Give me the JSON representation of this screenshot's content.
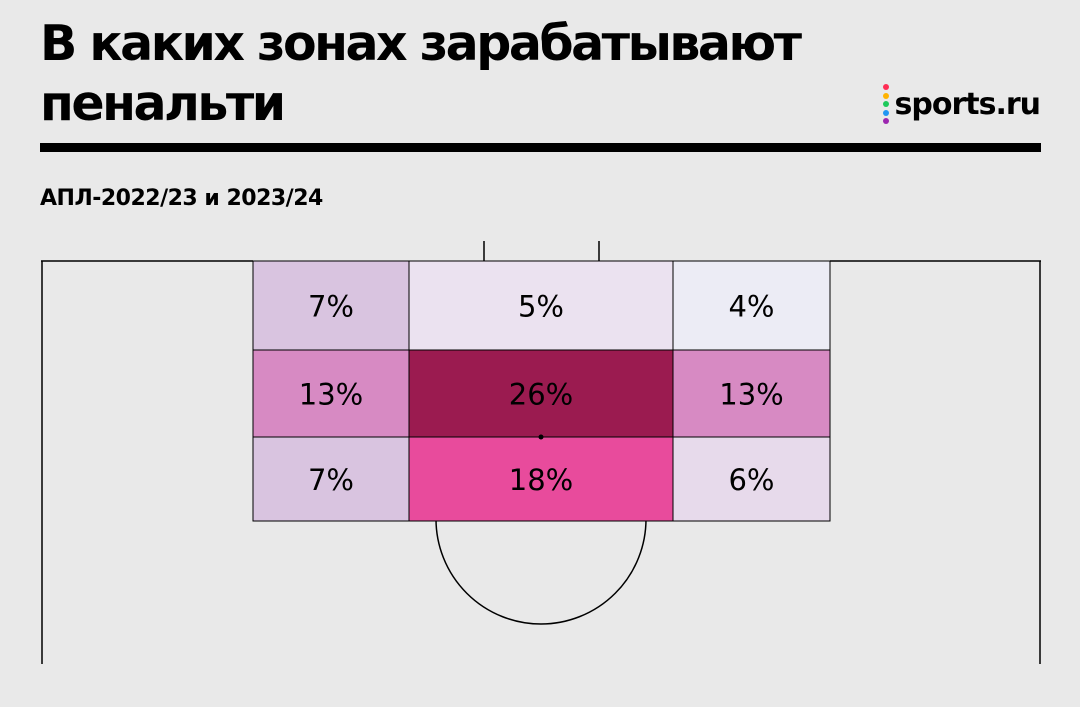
{
  "title": "В каких зонах зарабатывают пенальти",
  "subtitle": "АПЛ-2022/23 и 2023/24",
  "logo": {
    "text": "sports.ru",
    "dot_colors": [
      "#ff2d55",
      "#ffb300",
      "#1ec95b",
      "#2196f3",
      "#9c27b0"
    ]
  },
  "colors": {
    "background": "#e9e9e9",
    "pitch_lines": "#000000",
    "heat_scale": [
      "#ececf5",
      "#ebe2f0",
      "#e7daeb",
      "#d9c4e0",
      "#d78ac3",
      "#e84b9c",
      "#9b1b50"
    ]
  },
  "chart_data": {
    "type": "heatmap",
    "title": "В каких зонах зарабатывают пенальти",
    "subtitle": "АПЛ-2022/23 и 2023/24",
    "unit": "%",
    "rows": 3,
    "cols": 3,
    "values": [
      [
        7,
        5,
        4
      ],
      [
        13,
        26,
        13
      ],
      [
        7,
        18,
        6
      ]
    ],
    "labels": [
      [
        "7%",
        "5%",
        "4%"
      ],
      [
        "13%",
        "26%",
        "13%"
      ],
      [
        "7%",
        "18%",
        "6%"
      ]
    ],
    "cell_colors": [
      [
        "#d9c4e0",
        "#ebe2f0",
        "#ececf5"
      ],
      [
        "#d78ac3",
        "#9b1b50",
        "#d78ac3"
      ],
      [
        "#d9c4e0",
        "#e84b9c",
        "#e7daeb"
      ]
    ]
  }
}
